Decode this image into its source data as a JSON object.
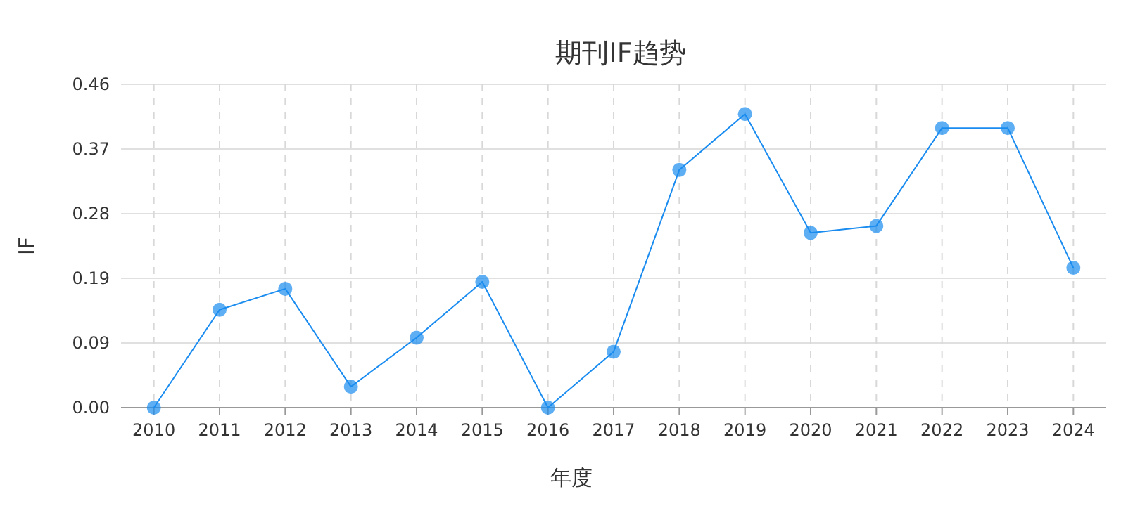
{
  "chart_data": {
    "type": "line",
    "title": "期刊IF趋势",
    "xlabel": "年度",
    "ylabel": "IF",
    "categories": [
      "2010",
      "2011",
      "2012",
      "2013",
      "2014",
      "2015",
      "2016",
      "2017",
      "2018",
      "2019",
      "2020",
      "2021",
      "2022",
      "2023",
      "2024"
    ],
    "series": [
      {
        "color": "#1a8cf0",
        "values": [
          0,
          0.14,
          0.17,
          0.03,
          0.1,
          0.18,
          0,
          0.08,
          0.34,
          0.42,
          0.25,
          0.26,
          0.4,
          0.4,
          0.2
        ]
      }
    ],
    "ylim": [
      0,
      0.4625
    ],
    "yticks": [
      {
        "value": 0,
        "label": "0.00"
      },
      {
        "value": 0.0925,
        "label": "0.09"
      },
      {
        "value": 0.185,
        "label": "0.19"
      },
      {
        "value": 0.2775,
        "label": "0.28"
      },
      {
        "value": 0.37,
        "label": "0.37"
      },
      {
        "value": 0.4625,
        "label": "0.46"
      }
    ],
    "grid": true,
    "marker": "circle",
    "line_style": "solid"
  }
}
